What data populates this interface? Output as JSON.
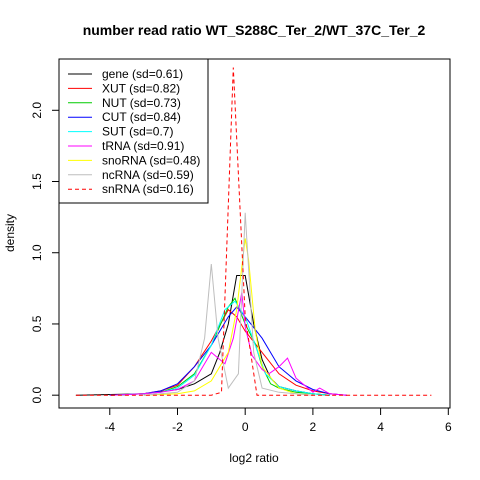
{
  "chart_data": {
    "type": "line",
    "title": "number read ratio WT_S288C_Ter_2/WT_37C_Ter_2",
    "xlabel": "log2 ratio",
    "ylabel": "density",
    "xlim": [
      -5.5,
      6.05
    ],
    "ylim": [
      -0.09,
      2.36
    ],
    "xticks": [
      -4,
      -2,
      0,
      2,
      4,
      6
    ],
    "yticks": [
      0.0,
      0.5,
      1.0,
      1.5,
      2.0
    ],
    "xtick_labels": [
      "-4",
      "-2",
      "0",
      "2",
      "4",
      "6"
    ],
    "ytick_labels": [
      "0.0",
      "0.5",
      "1.0",
      "1.5",
      "2.0"
    ],
    "legend_position": "top-left",
    "series": [
      {
        "name": "gene (sd=0.61)",
        "color": "#000000",
        "dashed": false,
        "x": [
          -5.0,
          -3.0,
          -2.0,
          -1.5,
          -1.0,
          -0.75,
          -0.5,
          -0.25,
          0.0,
          0.25,
          0.5,
          0.75,
          1.0,
          1.5,
          2.0,
          2.5
        ],
        "y": [
          0.0,
          0.01,
          0.04,
          0.08,
          0.15,
          0.3,
          0.5,
          0.84,
          0.84,
          0.5,
          0.25,
          0.12,
          0.06,
          0.03,
          0.01,
          0.0
        ]
      },
      {
        "name": "XUT (sd=0.82)",
        "color": "#ff0000",
        "dashed": false,
        "x": [
          -4.0,
          -3.0,
          -2.5,
          -2.0,
          -1.5,
          -1.0,
          -0.5,
          -0.25,
          0.0,
          0.5,
          1.0,
          1.5,
          2.0,
          2.5,
          3.0
        ],
        "y": [
          0.0,
          0.01,
          0.03,
          0.07,
          0.2,
          0.38,
          0.6,
          0.55,
          0.45,
          0.3,
          0.15,
          0.07,
          0.03,
          0.01,
          0.0
        ]
      },
      {
        "name": "NUT (sd=0.73)",
        "color": "#00cc00",
        "dashed": false,
        "x": [
          -4.0,
          -3.0,
          -2.5,
          -2.0,
          -1.5,
          -1.0,
          -0.5,
          -0.3,
          0.0,
          0.3,
          0.5,
          0.75,
          1.0,
          1.5,
          2.0,
          2.5
        ],
        "y": [
          0.0,
          0.01,
          0.02,
          0.06,
          0.15,
          0.35,
          0.62,
          0.68,
          0.5,
          0.36,
          0.2,
          0.08,
          0.05,
          0.02,
          0.01,
          0.0
        ]
      },
      {
        "name": "CUT (sd=0.84)",
        "color": "#0000ff",
        "dashed": false,
        "x": [
          -4.0,
          -3.0,
          -2.5,
          -2.0,
          -1.5,
          -1.0,
          -0.5,
          -0.25,
          0.0,
          0.5,
          1.0,
          1.5,
          2.0,
          2.5,
          3.0
        ],
        "y": [
          0.0,
          0.01,
          0.03,
          0.08,
          0.2,
          0.35,
          0.55,
          0.62,
          0.55,
          0.4,
          0.2,
          0.1,
          0.04,
          0.01,
          0.0
        ]
      },
      {
        "name": "SUT (sd=0.7)",
        "color": "#00ffff",
        "dashed": false,
        "x": [
          -4.0,
          -3.0,
          -2.5,
          -2.0,
          -1.5,
          -1.0,
          -0.6,
          -0.3,
          0.0,
          0.3,
          0.6,
          1.0,
          1.5,
          2.0,
          2.5
        ],
        "y": [
          0.0,
          0.01,
          0.02,
          0.05,
          0.14,
          0.35,
          0.6,
          0.66,
          0.55,
          0.35,
          0.15,
          0.06,
          0.03,
          0.01,
          0.0
        ]
      },
      {
        "name": "tRNA (sd=0.91)",
        "color": "#ff00ff",
        "dashed": false,
        "x": [
          -4.0,
          -3.0,
          -2.5,
          -2.0,
          -1.5,
          -1.0,
          -0.6,
          -0.35,
          -0.1,
          0.0,
          0.2,
          0.5,
          0.7,
          1.0,
          1.25,
          1.5,
          2.0,
          2.2,
          2.5,
          3.0
        ],
        "y": [
          0.0,
          0.01,
          0.02,
          0.04,
          0.1,
          0.3,
          0.22,
          0.4,
          0.72,
          0.48,
          0.28,
          0.18,
          0.15,
          0.2,
          0.26,
          0.12,
          0.02,
          0.05,
          0.01,
          0.0
        ]
      },
      {
        "name": "snoRNA (sd=0.48)",
        "color": "#ffff00",
        "dashed": false,
        "x": [
          -3.0,
          -2.0,
          -1.5,
          -1.0,
          -0.5,
          -0.25,
          0.0,
          0.1,
          0.3,
          0.5,
          1.0,
          1.5,
          2.0
        ],
        "y": [
          0.0,
          0.01,
          0.03,
          0.1,
          0.3,
          0.6,
          1.1,
          0.95,
          0.45,
          0.2,
          0.05,
          0.01,
          0.0
        ]
      },
      {
        "name": "ncRNA (sd=0.59)",
        "color": "#bebebe",
        "dashed": false,
        "x": [
          -3.0,
          -2.0,
          -1.5,
          -1.2,
          -1.0,
          -0.8,
          -0.5,
          -0.2,
          0.0,
          0.25,
          0.5,
          1.0,
          1.5,
          2.0
        ],
        "y": [
          0.0,
          0.02,
          0.1,
          0.4,
          0.92,
          0.4,
          0.05,
          0.15,
          1.28,
          0.3,
          0.05,
          0.02,
          0.01,
          0.0
        ]
      },
      {
        "name": "snRNA (sd=0.16)",
        "color": "#ff0000",
        "dashed": true,
        "x": [
          -5.0,
          -1.0,
          -0.7,
          -0.35,
          0.0,
          0.35,
          0.5,
          5.5
        ],
        "y": [
          0.0,
          0.0,
          0.02,
          2.3,
          0.55,
          0.0,
          0.0,
          0.0
        ]
      }
    ]
  }
}
